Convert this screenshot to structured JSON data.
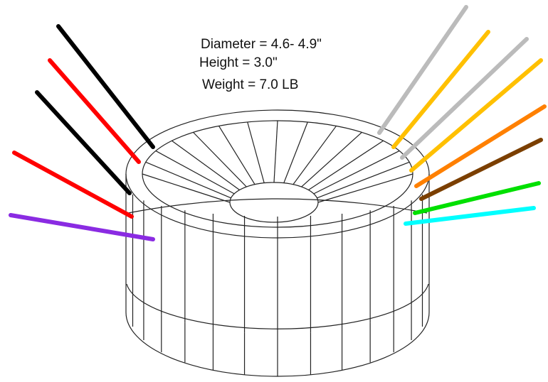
{
  "specs": [
    "Diameter = 4.6- 4.9\"",
    "Height = 3.0\"",
    "Weight = 7.0 LB"
  ]
}
